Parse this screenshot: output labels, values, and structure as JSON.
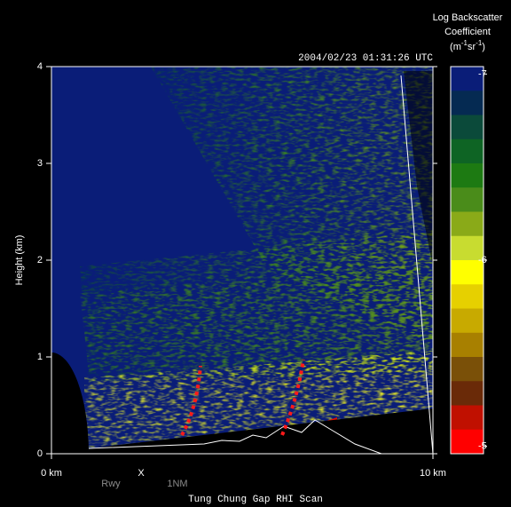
{
  "chart_data": {
    "type": "rhi-scan",
    "title": "Tung Chung Gap RHI Scan",
    "timestamp": "2004/02/23 01:31:26 UTC",
    "y_label": "Height (km)",
    "xlim": [
      0,
      10
    ],
    "xticks": [
      {
        "value": 0,
        "label": "0 km"
      },
      {
        "value": 10,
        "label": "10 km"
      }
    ],
    "ylim": [
      0,
      4
    ],
    "yticks": [
      0,
      1,
      2,
      3,
      4
    ],
    "annotations": [
      "Rwy",
      "X",
      "1NM"
    ],
    "colorbar": {
      "title": [
        "Log Backscatter",
        "Coefficient"
      ],
      "units": [
        "(m",
        "-1",
        "sr",
        "-1",
        ")"
      ],
      "clim": [
        -7.04,
        -4.96
      ],
      "ticks": [
        -7,
        -6,
        -5
      ],
      "colors": [
        "#0a1d78",
        "#052a52",
        "#0b4a3a",
        "#0e6424",
        "#1d7a12",
        "#4a8c1a",
        "#8aaa18",
        "#c8dc30",
        "#ffff00",
        "#e6d000",
        "#c8aa00",
        "#a88000",
        "#7a5008",
        "#6a2a08",
        "#c01000",
        "#ff0000"
      ]
    }
  }
}
